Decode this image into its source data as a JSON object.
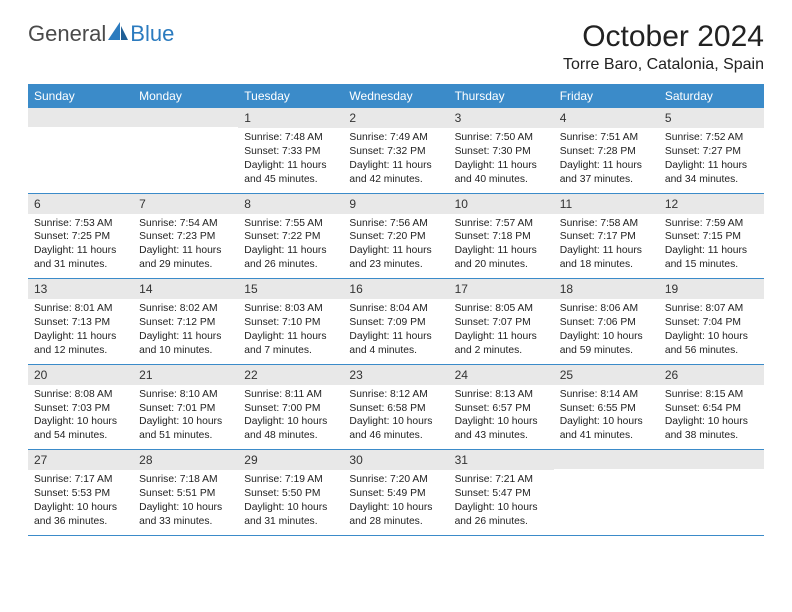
{
  "logo": {
    "general": "General",
    "blue": "Blue"
  },
  "title": "October 2024",
  "location": "Torre Baro, Catalonia, Spain",
  "colors": {
    "header_bg": "#3b8bc9",
    "header_text": "#ffffff",
    "daynum_bg": "#e8e8e8",
    "border": "#3b8bc9",
    "logo_gray": "#4a4a4a",
    "logo_blue": "#2b7bbf",
    "text": "#1a1a1a"
  },
  "day_headers": [
    "Sunday",
    "Monday",
    "Tuesday",
    "Wednesday",
    "Thursday",
    "Friday",
    "Saturday"
  ],
  "weeks": [
    [
      {
        "n": "",
        "sr": "",
        "ss": "",
        "dl": ""
      },
      {
        "n": "",
        "sr": "",
        "ss": "",
        "dl": ""
      },
      {
        "n": "1",
        "sr": "Sunrise: 7:48 AM",
        "ss": "Sunset: 7:33 PM",
        "dl": "Daylight: 11 hours and 45 minutes."
      },
      {
        "n": "2",
        "sr": "Sunrise: 7:49 AM",
        "ss": "Sunset: 7:32 PM",
        "dl": "Daylight: 11 hours and 42 minutes."
      },
      {
        "n": "3",
        "sr": "Sunrise: 7:50 AM",
        "ss": "Sunset: 7:30 PM",
        "dl": "Daylight: 11 hours and 40 minutes."
      },
      {
        "n": "4",
        "sr": "Sunrise: 7:51 AM",
        "ss": "Sunset: 7:28 PM",
        "dl": "Daylight: 11 hours and 37 minutes."
      },
      {
        "n": "5",
        "sr": "Sunrise: 7:52 AM",
        "ss": "Sunset: 7:27 PM",
        "dl": "Daylight: 11 hours and 34 minutes."
      }
    ],
    [
      {
        "n": "6",
        "sr": "Sunrise: 7:53 AM",
        "ss": "Sunset: 7:25 PM",
        "dl": "Daylight: 11 hours and 31 minutes."
      },
      {
        "n": "7",
        "sr": "Sunrise: 7:54 AM",
        "ss": "Sunset: 7:23 PM",
        "dl": "Daylight: 11 hours and 29 minutes."
      },
      {
        "n": "8",
        "sr": "Sunrise: 7:55 AM",
        "ss": "Sunset: 7:22 PM",
        "dl": "Daylight: 11 hours and 26 minutes."
      },
      {
        "n": "9",
        "sr": "Sunrise: 7:56 AM",
        "ss": "Sunset: 7:20 PM",
        "dl": "Daylight: 11 hours and 23 minutes."
      },
      {
        "n": "10",
        "sr": "Sunrise: 7:57 AM",
        "ss": "Sunset: 7:18 PM",
        "dl": "Daylight: 11 hours and 20 minutes."
      },
      {
        "n": "11",
        "sr": "Sunrise: 7:58 AM",
        "ss": "Sunset: 7:17 PM",
        "dl": "Daylight: 11 hours and 18 minutes."
      },
      {
        "n": "12",
        "sr": "Sunrise: 7:59 AM",
        "ss": "Sunset: 7:15 PM",
        "dl": "Daylight: 11 hours and 15 minutes."
      }
    ],
    [
      {
        "n": "13",
        "sr": "Sunrise: 8:01 AM",
        "ss": "Sunset: 7:13 PM",
        "dl": "Daylight: 11 hours and 12 minutes."
      },
      {
        "n": "14",
        "sr": "Sunrise: 8:02 AM",
        "ss": "Sunset: 7:12 PM",
        "dl": "Daylight: 11 hours and 10 minutes."
      },
      {
        "n": "15",
        "sr": "Sunrise: 8:03 AM",
        "ss": "Sunset: 7:10 PM",
        "dl": "Daylight: 11 hours and 7 minutes."
      },
      {
        "n": "16",
        "sr": "Sunrise: 8:04 AM",
        "ss": "Sunset: 7:09 PM",
        "dl": "Daylight: 11 hours and 4 minutes."
      },
      {
        "n": "17",
        "sr": "Sunrise: 8:05 AM",
        "ss": "Sunset: 7:07 PM",
        "dl": "Daylight: 11 hours and 2 minutes."
      },
      {
        "n": "18",
        "sr": "Sunrise: 8:06 AM",
        "ss": "Sunset: 7:06 PM",
        "dl": "Daylight: 10 hours and 59 minutes."
      },
      {
        "n": "19",
        "sr": "Sunrise: 8:07 AM",
        "ss": "Sunset: 7:04 PM",
        "dl": "Daylight: 10 hours and 56 minutes."
      }
    ],
    [
      {
        "n": "20",
        "sr": "Sunrise: 8:08 AM",
        "ss": "Sunset: 7:03 PM",
        "dl": "Daylight: 10 hours and 54 minutes."
      },
      {
        "n": "21",
        "sr": "Sunrise: 8:10 AM",
        "ss": "Sunset: 7:01 PM",
        "dl": "Daylight: 10 hours and 51 minutes."
      },
      {
        "n": "22",
        "sr": "Sunrise: 8:11 AM",
        "ss": "Sunset: 7:00 PM",
        "dl": "Daylight: 10 hours and 48 minutes."
      },
      {
        "n": "23",
        "sr": "Sunrise: 8:12 AM",
        "ss": "Sunset: 6:58 PM",
        "dl": "Daylight: 10 hours and 46 minutes."
      },
      {
        "n": "24",
        "sr": "Sunrise: 8:13 AM",
        "ss": "Sunset: 6:57 PM",
        "dl": "Daylight: 10 hours and 43 minutes."
      },
      {
        "n": "25",
        "sr": "Sunrise: 8:14 AM",
        "ss": "Sunset: 6:55 PM",
        "dl": "Daylight: 10 hours and 41 minutes."
      },
      {
        "n": "26",
        "sr": "Sunrise: 8:15 AM",
        "ss": "Sunset: 6:54 PM",
        "dl": "Daylight: 10 hours and 38 minutes."
      }
    ],
    [
      {
        "n": "27",
        "sr": "Sunrise: 7:17 AM",
        "ss": "Sunset: 5:53 PM",
        "dl": "Daylight: 10 hours and 36 minutes."
      },
      {
        "n": "28",
        "sr": "Sunrise: 7:18 AM",
        "ss": "Sunset: 5:51 PM",
        "dl": "Daylight: 10 hours and 33 minutes."
      },
      {
        "n": "29",
        "sr": "Sunrise: 7:19 AM",
        "ss": "Sunset: 5:50 PM",
        "dl": "Daylight: 10 hours and 31 minutes."
      },
      {
        "n": "30",
        "sr": "Sunrise: 7:20 AM",
        "ss": "Sunset: 5:49 PM",
        "dl": "Daylight: 10 hours and 28 minutes."
      },
      {
        "n": "31",
        "sr": "Sunrise: 7:21 AM",
        "ss": "Sunset: 5:47 PM",
        "dl": "Daylight: 10 hours and 26 minutes."
      },
      {
        "n": "",
        "sr": "",
        "ss": "",
        "dl": ""
      },
      {
        "n": "",
        "sr": "",
        "ss": "",
        "dl": ""
      }
    ]
  ]
}
